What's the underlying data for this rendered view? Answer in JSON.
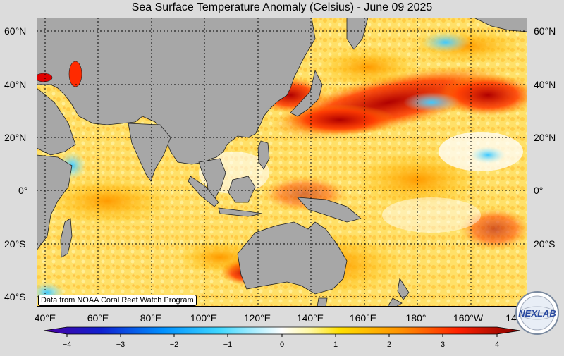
{
  "title": "Sea Surface Temperature Anomaly (Celsius) - June 09 2025",
  "lat_labels_left": [
    "60°N",
    "40°N",
    "20°N",
    "0°",
    "20°S",
    "40°S"
  ],
  "lat_labels_right": [
    "60°N",
    "40°N",
    "20°N",
    "0°",
    "20°S"
  ],
  "lon_labels": [
    "40°E",
    "60°E",
    "80°E",
    "100°E",
    "120°E",
    "140°E",
    "160°E",
    "180°",
    "160°W",
    "14"
  ],
  "credit": "Data from NOAA Coral Reef Watch Program",
  "colorbar": {
    "ticks": [
      "−4",
      "−3",
      "−2",
      "−1",
      "0",
      "1",
      "2",
      "3",
      "4"
    ],
    "range": [
      -4,
      4
    ]
  },
  "logo_text": "NEXLAB",
  "colors": {
    "land": "#a7a7a7",
    "ocean_neutral": "#fff5b0",
    "warm": "#ff9a00",
    "hot": "#c40000",
    "cool": "#7fe0ff",
    "background": "#dcdcdc"
  }
}
